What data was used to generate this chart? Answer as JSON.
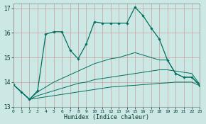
{
  "xlabel": "Humidex (Indice chaleur)",
  "background_color": "#cce8e4",
  "line_color": "#007060",
  "xlim": [
    0,
    23
  ],
  "ylim": [
    13.0,
    17.2
  ],
  "yticks": [
    13,
    14,
    15,
    16,
    17
  ],
  "xticks": [
    0,
    1,
    2,
    3,
    4,
    5,
    6,
    7,
    8,
    9,
    10,
    11,
    12,
    13,
    14,
    15,
    16,
    17,
    18,
    19,
    20,
    21,
    22,
    23
  ],
  "series": [
    {
      "x": [
        0,
        1,
        2,
        3,
        4,
        5,
        6,
        7,
        8,
        9,
        10,
        11,
        12,
        13,
        14,
        15,
        16,
        17,
        18,
        19,
        20,
        21,
        22,
        23
      ],
      "y": [
        13.9,
        13.6,
        13.3,
        13.35,
        13.4,
        13.45,
        13.5,
        13.55,
        13.6,
        13.65,
        13.7,
        13.75,
        13.8,
        13.82,
        13.85,
        13.87,
        13.9,
        13.92,
        13.95,
        13.97,
        14.0,
        14.0,
        14.0,
        13.85
      ],
      "marker": false,
      "lw": 0.7
    },
    {
      "x": [
        0,
        1,
        2,
        3,
        4,
        5,
        6,
        7,
        8,
        9,
        10,
        11,
        12,
        13,
        14,
        15,
        16,
        17,
        18,
        19,
        20,
        21,
        22,
        23
      ],
      "y": [
        13.9,
        13.6,
        13.3,
        13.45,
        13.55,
        13.65,
        13.75,
        13.85,
        13.95,
        14.0,
        14.1,
        14.15,
        14.2,
        14.25,
        14.3,
        14.35,
        14.4,
        14.45,
        14.5,
        14.5,
        14.45,
        14.4,
        14.35,
        13.9
      ],
      "marker": false,
      "lw": 0.7
    },
    {
      "x": [
        0,
        1,
        2,
        3,
        4,
        5,
        6,
        7,
        8,
        9,
        10,
        11,
        12,
        13,
        14,
        15,
        16,
        17,
        18,
        19,
        20,
        21,
        22,
        23
      ],
      "y": [
        13.9,
        13.6,
        13.3,
        13.6,
        13.8,
        14.0,
        14.15,
        14.3,
        14.45,
        14.6,
        14.75,
        14.85,
        14.95,
        15.0,
        15.1,
        15.2,
        15.1,
        15.0,
        14.9,
        14.9,
        14.35,
        14.2,
        14.2,
        13.9
      ],
      "marker": false,
      "lw": 0.7
    },
    {
      "x": [
        0,
        1,
        2,
        3,
        4,
        5,
        6,
        7,
        8,
        9,
        10,
        11,
        12,
        13,
        14,
        15,
        16,
        17,
        18,
        19,
        20,
        21,
        22,
        23
      ],
      "y": [
        13.9,
        13.6,
        13.3,
        13.65,
        15.95,
        16.05,
        16.05,
        15.3,
        14.95,
        15.55,
        16.45,
        16.4,
        16.4,
        16.4,
        16.4,
        17.05,
        16.7,
        16.2,
        15.75,
        14.9,
        14.35,
        14.2,
        14.2,
        13.85
      ],
      "marker": true,
      "lw": 0.9
    }
  ]
}
